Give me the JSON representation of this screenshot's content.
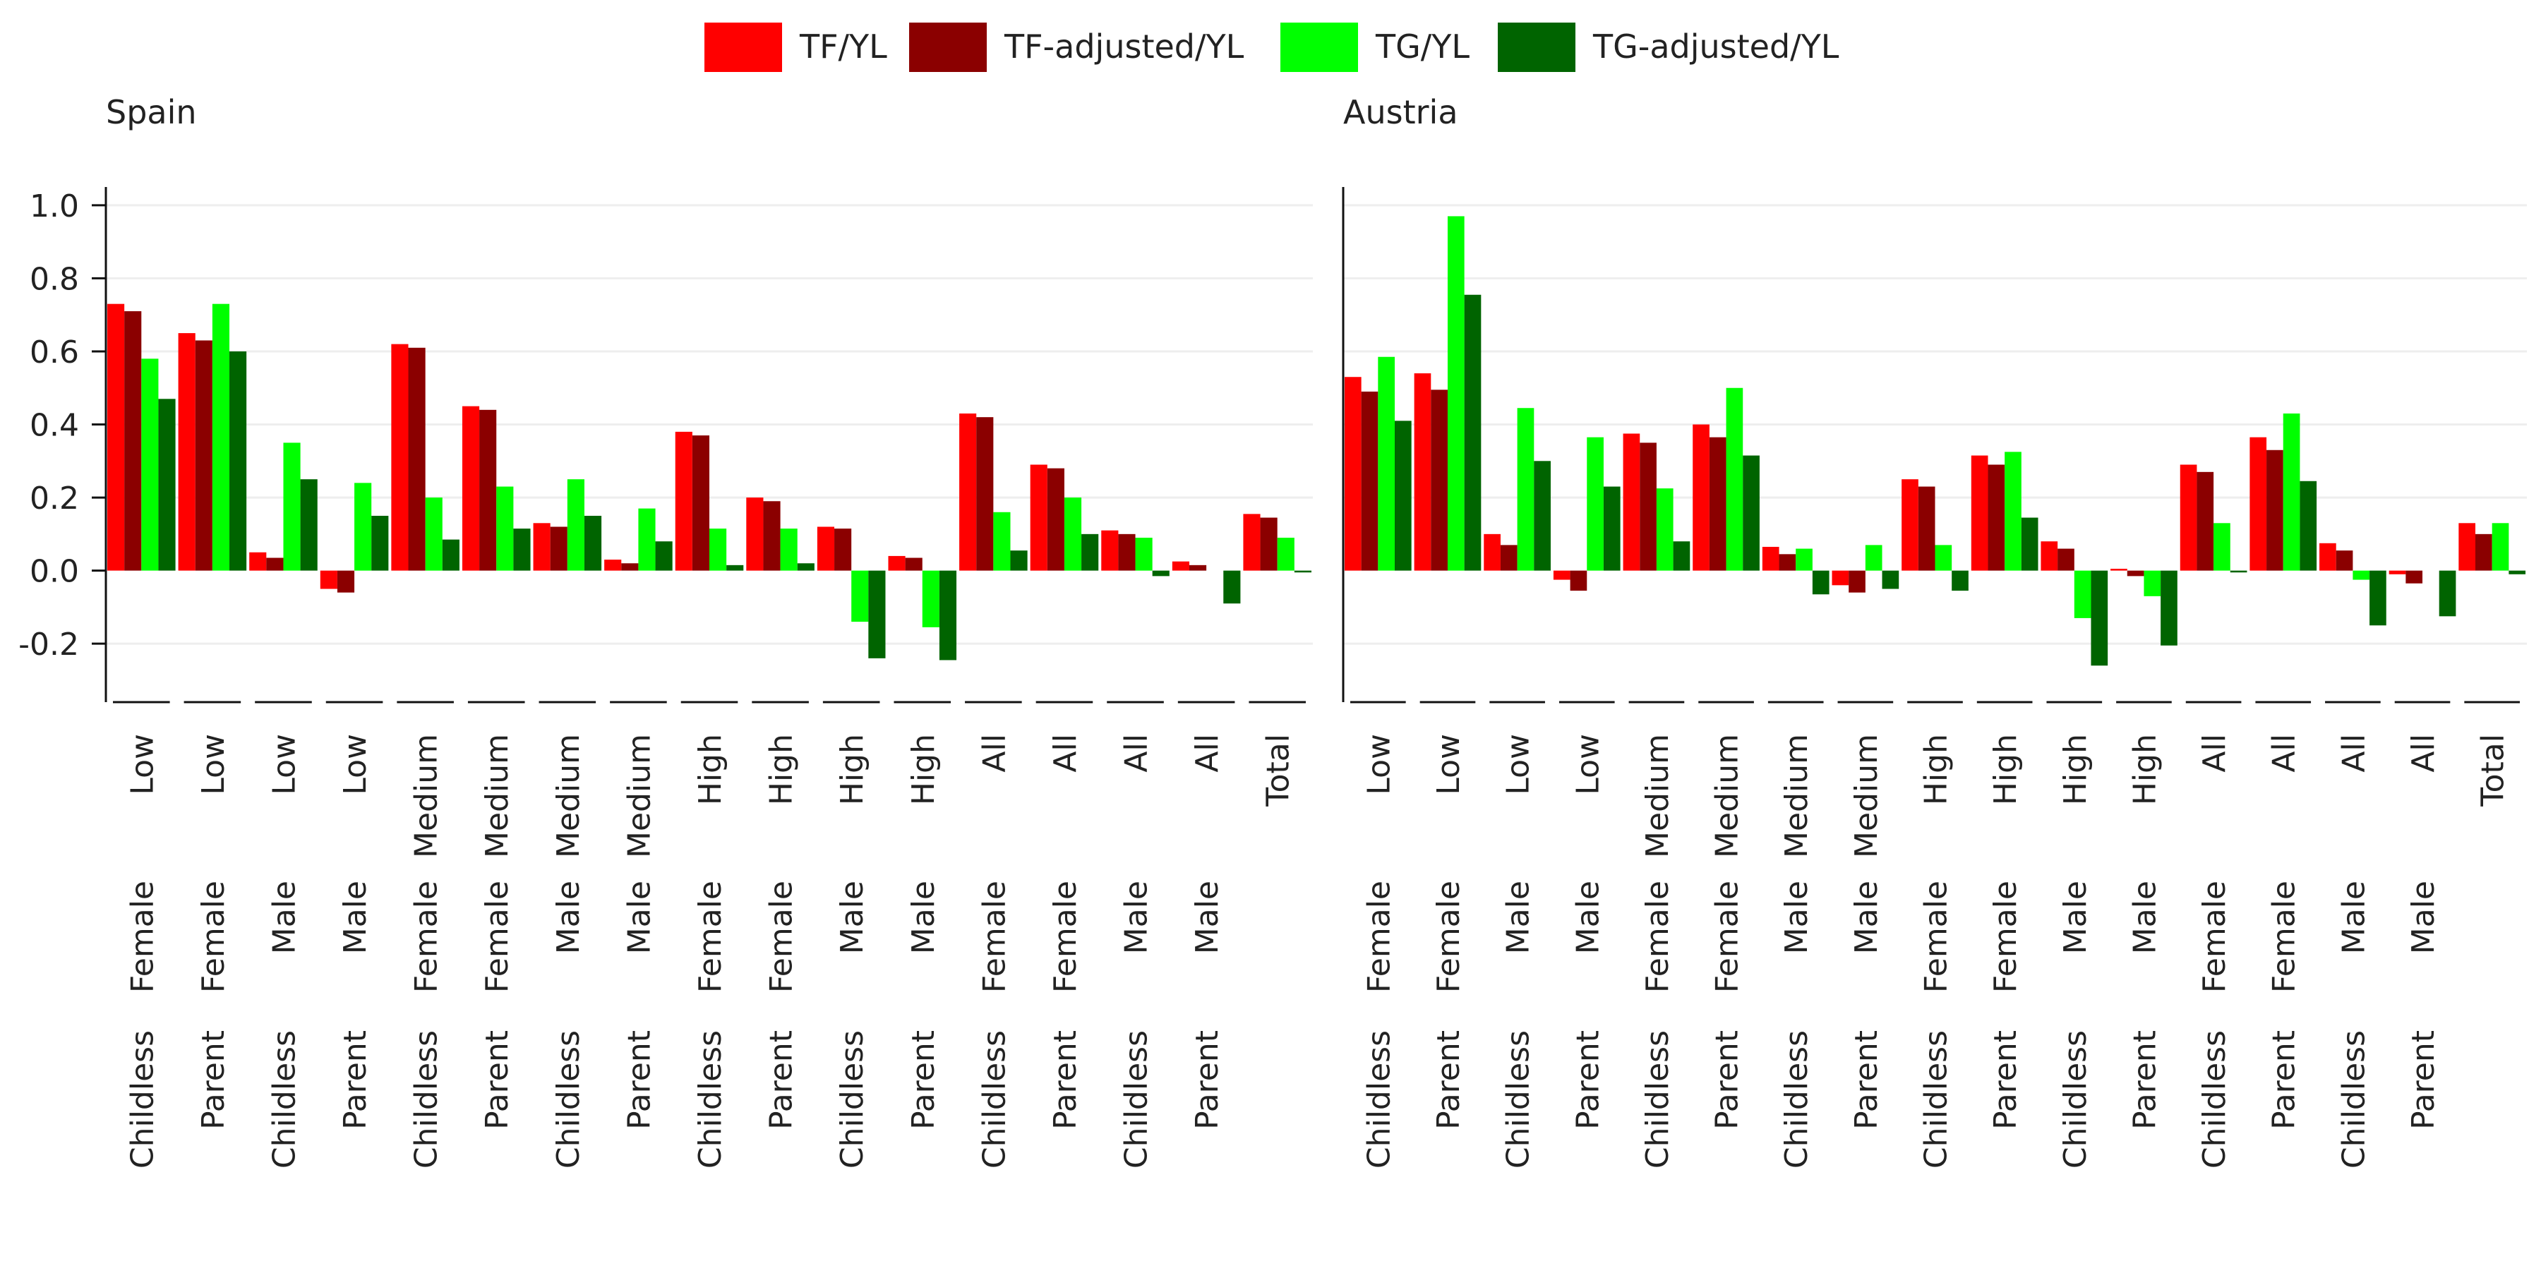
{
  "legend": {
    "items": [
      {
        "label": "TF/YL",
        "color": "#ff0000"
      },
      {
        "label": "TF-adjusted/YL",
        "color": "#8b0000"
      },
      {
        "label": "TG/YL",
        "color": "#00ff00"
      },
      {
        "label": "TG-adjusted/YL",
        "color": "#006400"
      }
    ]
  },
  "chart_data": [
    {
      "type": "bar",
      "title": "Spain",
      "ylim": [
        -0.36,
        1.05
      ],
      "yticks": [
        -0.2,
        0.0,
        0.2,
        0.4,
        0.6,
        0.8,
        1.0
      ],
      "ytick_labels": [
        "-0.2",
        "0.0",
        "0.2",
        "0.4",
        "0.6",
        "0.8",
        "1.0"
      ],
      "grid": true,
      "legend_position": "top",
      "categories": [
        {
          "parent": "Childless",
          "gender": "Female",
          "education": "Low"
        },
        {
          "parent": "Parent",
          "gender": "Female",
          "education": "Low"
        },
        {
          "parent": "Childless",
          "gender": "Male",
          "education": "Low"
        },
        {
          "parent": "Parent",
          "gender": "Male",
          "education": "Low"
        },
        {
          "parent": "Childless",
          "gender": "Female",
          "education": "Medium"
        },
        {
          "parent": "Parent",
          "gender": "Female",
          "education": "Medium"
        },
        {
          "parent": "Childless",
          "gender": "Male",
          "education": "Medium"
        },
        {
          "parent": "Parent",
          "gender": "Male",
          "education": "Medium"
        },
        {
          "parent": "Childless",
          "gender": "Female",
          "education": "High"
        },
        {
          "parent": "Parent",
          "gender": "Female",
          "education": "High"
        },
        {
          "parent": "Childless",
          "gender": "Male",
          "education": "High"
        },
        {
          "parent": "Parent",
          "gender": "Male",
          "education": "High"
        },
        {
          "parent": "Childless",
          "gender": "Female",
          "education": "All"
        },
        {
          "parent": "Parent",
          "gender": "Female",
          "education": "All"
        },
        {
          "parent": "Childless",
          "gender": "Male",
          "education": "All"
        },
        {
          "parent": "Parent",
          "gender": "Male",
          "education": "All"
        },
        {
          "parent": "",
          "gender": "",
          "education": "Total"
        }
      ],
      "series": [
        {
          "name": "TF/YL",
          "color": "#ff0000",
          "values": [
            0.73,
            0.65,
            0.05,
            -0.05,
            0.62,
            0.45,
            0.13,
            0.03,
            0.38,
            0.2,
            0.12,
            0.04,
            0.43,
            0.29,
            0.11,
            0.025,
            0.155
          ]
        },
        {
          "name": "TF-adjusted/YL",
          "color": "#8b0000",
          "values": [
            0.71,
            0.63,
            0.035,
            -0.06,
            0.61,
            0.44,
            0.12,
            0.02,
            0.37,
            0.19,
            0.115,
            0.035,
            0.42,
            0.28,
            0.1,
            0.015,
            0.145
          ]
        },
        {
          "name": "TG/YL",
          "color": "#00ff00",
          "values": [
            0.58,
            0.73,
            0.35,
            0.24,
            0.2,
            0.23,
            0.25,
            0.17,
            0.115,
            0.115,
            -0.14,
            -0.155,
            0.16,
            0.2,
            0.09,
            0.0,
            0.09
          ]
        },
        {
          "name": "TG-adjusted/YL",
          "color": "#006400",
          "values": [
            0.47,
            0.6,
            0.25,
            0.15,
            0.085,
            0.115,
            0.15,
            0.08,
            0.015,
            0.02,
            -0.24,
            -0.245,
            0.055,
            0.1,
            -0.015,
            -0.09,
            -0.005
          ]
        }
      ]
    },
    {
      "type": "bar",
      "title": "Austria",
      "ylim": [
        -0.36,
        1.05
      ],
      "yticks": [
        -0.2,
        0.0,
        0.2,
        0.4,
        0.6,
        0.8,
        1.0
      ],
      "grid": true,
      "legend_position": "top",
      "categories": [
        {
          "parent": "Childless",
          "gender": "Female",
          "education": "Low"
        },
        {
          "parent": "Parent",
          "gender": "Female",
          "education": "Low"
        },
        {
          "parent": "Childless",
          "gender": "Male",
          "education": "Low"
        },
        {
          "parent": "Parent",
          "gender": "Male",
          "education": "Low"
        },
        {
          "parent": "Childless",
          "gender": "Female",
          "education": "Medium"
        },
        {
          "parent": "Parent",
          "gender": "Female",
          "education": "Medium"
        },
        {
          "parent": "Childless",
          "gender": "Male",
          "education": "Medium"
        },
        {
          "parent": "Parent",
          "gender": "Male",
          "education": "Medium"
        },
        {
          "parent": "Childless",
          "gender": "Female",
          "education": "High"
        },
        {
          "parent": "Parent",
          "gender": "Female",
          "education": "High"
        },
        {
          "parent": "Childless",
          "gender": "Male",
          "education": "High"
        },
        {
          "parent": "Parent",
          "gender": "Male",
          "education": "High"
        },
        {
          "parent": "Childless",
          "gender": "Female",
          "education": "All"
        },
        {
          "parent": "Parent",
          "gender": "Female",
          "education": "All"
        },
        {
          "parent": "Childless",
          "gender": "Male",
          "education": "All"
        },
        {
          "parent": "Parent",
          "gender": "Male",
          "education": "All"
        },
        {
          "parent": "",
          "gender": "",
          "education": "Total"
        }
      ],
      "series": [
        {
          "name": "TF/YL",
          "color": "#ff0000",
          "values": [
            0.53,
            0.54,
            0.1,
            -0.025,
            0.375,
            0.4,
            0.065,
            -0.04,
            0.25,
            0.315,
            0.08,
            0.005,
            0.29,
            0.365,
            0.075,
            -0.01,
            0.13
          ]
        },
        {
          "name": "TF-adjusted/YL",
          "color": "#8b0000",
          "values": [
            0.49,
            0.495,
            0.07,
            -0.055,
            0.35,
            0.365,
            0.045,
            -0.06,
            0.23,
            0.29,
            0.06,
            -0.015,
            0.27,
            0.33,
            0.055,
            -0.035,
            0.1
          ]
        },
        {
          "name": "TG/YL",
          "color": "#00ff00",
          "values": [
            0.585,
            0.97,
            0.445,
            0.365,
            0.225,
            0.5,
            0.06,
            0.07,
            0.07,
            0.325,
            -0.13,
            -0.07,
            0.13,
            0.43,
            -0.025,
            0.0,
            0.13
          ]
        },
        {
          "name": "TG-adjusted/YL",
          "color": "#006400",
          "values": [
            0.41,
            0.755,
            0.3,
            0.23,
            0.08,
            0.315,
            -0.065,
            -0.05,
            -0.055,
            0.145,
            -0.26,
            -0.205,
            -0.005,
            0.245,
            -0.15,
            -0.125,
            -0.01
          ]
        }
      ]
    }
  ]
}
